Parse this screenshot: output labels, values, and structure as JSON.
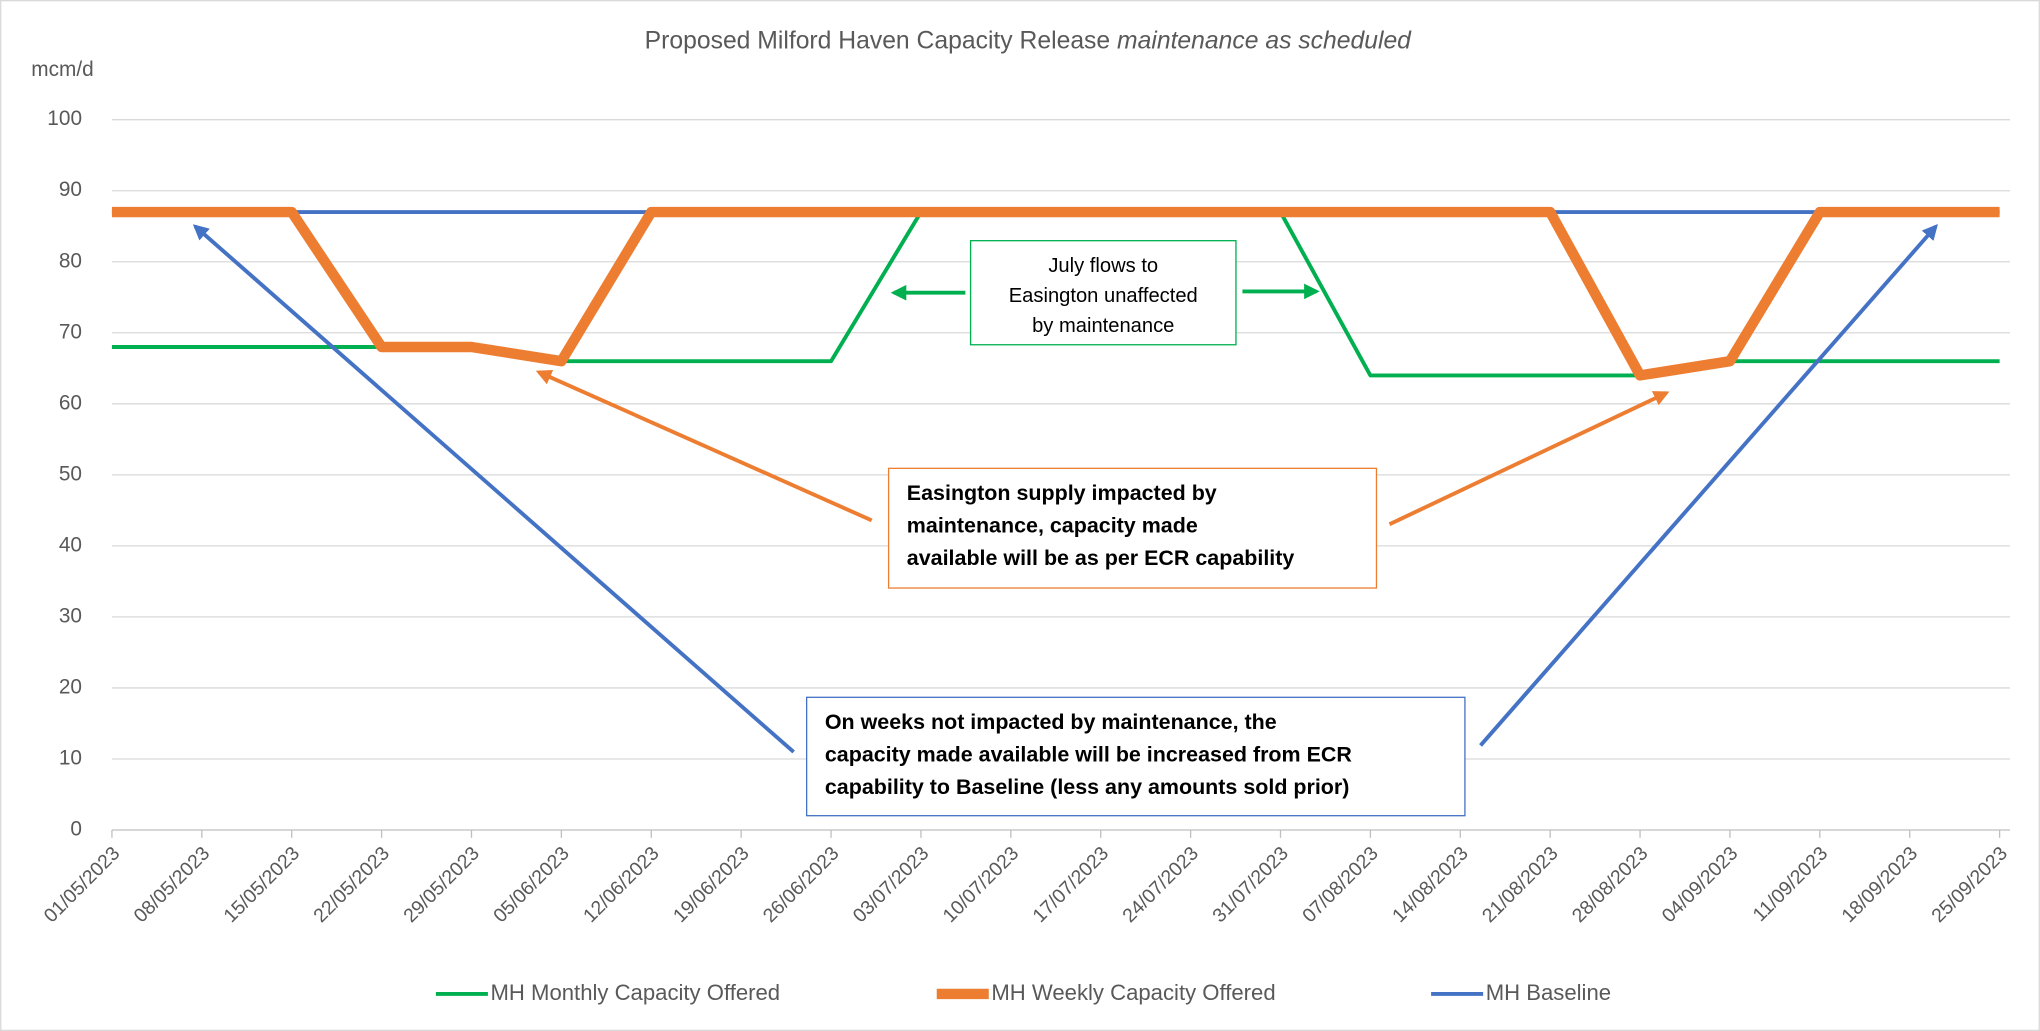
{
  "chart_data": {
    "type": "line",
    "title": "Proposed Milford Haven Capacity Release",
    "subtitle": "maintenance as scheduled",
    "y_label": "mcm/d",
    "categories": [
      "01/05/2023",
      "08/05/2023",
      "15/05/2023",
      "22/05/2023",
      "29/05/2023",
      "05/06/2023",
      "12/06/2023",
      "19/06/2023",
      "26/06/2023",
      "03/07/2023",
      "10/07/2023",
      "17/07/2023",
      "24/07/2023",
      "31/07/2023",
      "07/08/2023",
      "14/08/2023",
      "21/08/2023",
      "28/08/2023",
      "04/09/2023",
      "11/09/2023",
      "18/09/2023",
      "25/09/2023"
    ],
    "series": [
      {
        "name": "MH Monthly Capacity Offered",
        "color": "#00b050",
        "width": 3,
        "values": [
          68,
          68,
          68,
          68,
          68,
          66,
          66,
          66,
          66,
          87,
          87,
          87,
          87,
          87,
          64,
          64,
          64,
          64,
          66,
          66,
          66,
          66
        ]
      },
      {
        "name": "MH Weekly Capacity Offered",
        "color": "#ed7d31",
        "width": 8,
        "values": [
          87,
          87,
          87,
          68,
          68,
          66,
          87,
          87,
          87,
          87,
          87,
          87,
          87,
          87,
          87,
          87,
          87,
          64,
          66,
          87,
          87,
          87
        ]
      },
      {
        "name": "MH Baseline",
        "color": "#4472c4",
        "width": 3,
        "values": [
          87,
          87,
          87,
          87,
          87,
          87,
          87,
          87,
          87,
          87,
          87,
          87,
          87,
          87,
          87,
          87,
          87,
          87,
          87,
          87,
          87,
          87
        ]
      }
    ],
    "ylim": [
      0,
      100
    ],
    "yticks": [
      0,
      10,
      20,
      30,
      40,
      50,
      60,
      70,
      80,
      90,
      100
    ],
    "grid": true,
    "legend": "bottom",
    "annotations": [
      {
        "lines": [
          "July flows to",
          "Easington unaffected",
          "by maintenance"
        ]
      },
      {
        "lines": [
          "Easington supply impacted by",
          "maintenance, capacity made",
          "available will be as per ECR capability"
        ]
      },
      {
        "lines": [
          "On weeks not impacted by maintenance, the",
          "capacity made available will be increased from ECR",
          "capability to Baseline (less any amounts sold prior)"
        ]
      }
    ]
  }
}
